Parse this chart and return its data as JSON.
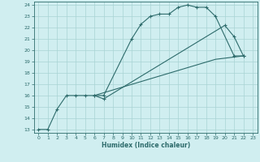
{
  "xlabel": "Humidex (Indice chaleur)",
  "xlim": [
    -0.5,
    23.5
  ],
  "ylim": [
    12.7,
    24.3
  ],
  "yticks": [
    13,
    14,
    15,
    16,
    17,
    18,
    19,
    20,
    21,
    22,
    23,
    24
  ],
  "xticks": [
    0,
    1,
    2,
    3,
    4,
    5,
    6,
    7,
    8,
    9,
    10,
    11,
    12,
    13,
    14,
    15,
    16,
    17,
    18,
    19,
    20,
    21,
    22,
    23
  ],
  "bg_color": "#d0eef0",
  "line_color": "#2d6b6b",
  "grid_color": "#a8d4d4",
  "curve1_x": [
    0,
    1,
    2,
    3,
    4,
    5,
    6,
    7,
    10,
    11,
    12,
    13,
    14,
    15,
    16,
    17,
    18,
    19,
    21,
    22
  ],
  "curve1_y": [
    13,
    13,
    14.8,
    16,
    16,
    16,
    16,
    16,
    21,
    22.3,
    23,
    23.2,
    23.2,
    23.8,
    24,
    23.8,
    23.8,
    23,
    19.5,
    19.5
  ],
  "curve2_x": [
    6,
    7,
    20,
    21,
    22
  ],
  "curve2_y": [
    16,
    15.7,
    22.2,
    21.2,
    19.5
  ],
  "curve3_x": [
    6,
    19,
    22
  ],
  "curve3_y": [
    16,
    19.2,
    19.5
  ]
}
